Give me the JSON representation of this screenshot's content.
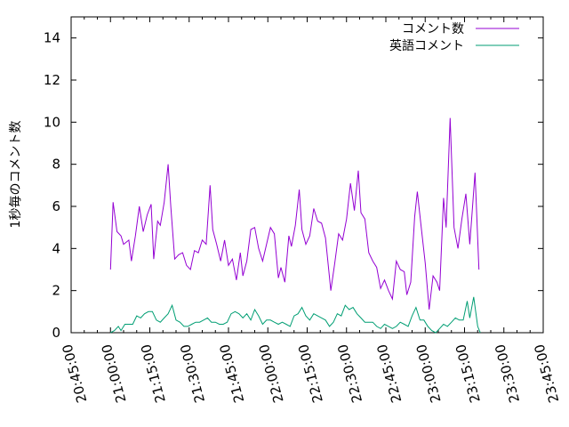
{
  "chart_data": {
    "type": "line",
    "title": "",
    "xlabel": "",
    "ylabel": "1秒毎のコメント数",
    "x_tick_labels": [
      "20:45:00",
      "21:00:00",
      "21:15:00",
      "21:30:00",
      "21:45:00",
      "22:00:00",
      "22:15:00",
      "22:30:00",
      "22:45:00",
      "23:00:00",
      "23:15:00",
      "23:30:00",
      "23:45:00"
    ],
    "x_range": [
      "20:45:00",
      "23:45:00"
    ],
    "y_ticks": [
      0,
      2,
      4,
      6,
      8,
      10,
      12,
      14
    ],
    "ylim": [
      0,
      15
    ],
    "legend_position": "top-right",
    "grid": false,
    "series": [
      {
        "name": "コメント数",
        "color": "#9400d3",
        "points": [
          [
            "21:00:00",
            3.0
          ],
          [
            "21:01:00",
            6.2
          ],
          [
            "21:02:30",
            4.8
          ],
          [
            "21:04:00",
            4.6
          ],
          [
            "21:05:00",
            4.2
          ],
          [
            "21:07:00",
            4.4
          ],
          [
            "21:08:00",
            3.4
          ],
          [
            "21:09:30",
            4.6
          ],
          [
            "21:11:00",
            6.0
          ],
          [
            "21:12:30",
            4.8
          ],
          [
            "21:14:00",
            5.6
          ],
          [
            "21:15:30",
            6.1
          ],
          [
            "21:16:30",
            3.5
          ],
          [
            "21:18:00",
            5.3
          ],
          [
            "21:19:00",
            5.1
          ],
          [
            "21:20:30",
            6.2
          ],
          [
            "21:22:00",
            8.0
          ],
          [
            "21:23:00",
            6.0
          ],
          [
            "21:24:30",
            3.5
          ],
          [
            "21:26:00",
            3.7
          ],
          [
            "21:27:30",
            3.8
          ],
          [
            "21:29:00",
            3.2
          ],
          [
            "21:30:30",
            3.0
          ],
          [
            "21:32:00",
            3.9
          ],
          [
            "21:33:30",
            3.8
          ],
          [
            "21:35:00",
            4.4
          ],
          [
            "21:36:30",
            4.2
          ],
          [
            "21:38:00",
            7.0
          ],
          [
            "21:39:00",
            4.9
          ],
          [
            "21:40:30",
            4.2
          ],
          [
            "21:42:00",
            3.4
          ],
          [
            "21:43:30",
            4.4
          ],
          [
            "21:45:00",
            3.2
          ],
          [
            "21:46:30",
            3.5
          ],
          [
            "21:48:00",
            2.5
          ],
          [
            "21:49:30",
            3.8
          ],
          [
            "21:50:30",
            2.7
          ],
          [
            "21:52:00",
            3.4
          ],
          [
            "21:53:30",
            4.9
          ],
          [
            "21:55:00",
            5.0
          ],
          [
            "21:56:30",
            4.0
          ],
          [
            "21:58:00",
            3.4
          ],
          [
            "21:59:30",
            4.2
          ],
          [
            "22:01:00",
            5.0
          ],
          [
            "22:02:30",
            4.7
          ],
          [
            "22:04:00",
            2.6
          ],
          [
            "22:05:00",
            3.1
          ],
          [
            "22:06:30",
            2.4
          ],
          [
            "22:08:00",
            4.6
          ],
          [
            "22:09:00",
            4.1
          ],
          [
            "22:10:30",
            5.1
          ],
          [
            "22:12:00",
            6.8
          ],
          [
            "22:13:00",
            4.9
          ],
          [
            "22:14:30",
            4.2
          ],
          [
            "22:16:00",
            4.6
          ],
          [
            "22:17:30",
            5.9
          ],
          [
            "22:19:00",
            5.3
          ],
          [
            "22:20:30",
            5.2
          ],
          [
            "22:22:00",
            4.5
          ],
          [
            "22:24:00",
            2.0
          ],
          [
            "22:25:30",
            3.3
          ],
          [
            "22:27:00",
            4.7
          ],
          [
            "22:28:30",
            4.4
          ],
          [
            "22:30:00",
            5.4
          ],
          [
            "22:31:30",
            7.1
          ],
          [
            "22:33:00",
            5.8
          ],
          [
            "22:34:30",
            7.7
          ],
          [
            "22:35:30",
            5.7
          ],
          [
            "22:37:00",
            5.4
          ],
          [
            "22:38:30",
            3.8
          ],
          [
            "22:40:00",
            3.4
          ],
          [
            "22:41:30",
            3.1
          ],
          [
            "22:43:00",
            2.1
          ],
          [
            "22:44:30",
            2.5
          ],
          [
            "22:46:00",
            2.0
          ],
          [
            "22:47:30",
            1.6
          ],
          [
            "22:49:00",
            3.4
          ],
          [
            "22:50:30",
            3.0
          ],
          [
            "22:52:00",
            2.9
          ],
          [
            "22:53:00",
            1.8
          ],
          [
            "22:54:30",
            2.4
          ],
          [
            "22:56:00",
            5.5
          ],
          [
            "22:57:00",
            6.7
          ],
          [
            "22:58:30",
            5.0
          ],
          [
            "23:00:00",
            3.3
          ],
          [
            "23:01:30",
            1.1
          ],
          [
            "23:03:00",
            2.7
          ],
          [
            "23:04:30",
            2.4
          ],
          [
            "23:05:30",
            2.0
          ],
          [
            "23:07:00",
            6.4
          ],
          [
            "23:08:00",
            5.0
          ],
          [
            "23:09:30",
            10.2
          ],
          [
            "23:11:00",
            5.0
          ],
          [
            "23:12:30",
            4.0
          ],
          [
            "23:14:00",
            5.4
          ],
          [
            "23:15:30",
            6.6
          ],
          [
            "23:17:00",
            4.2
          ],
          [
            "23:19:00",
            7.6
          ],
          [
            "23:20:30",
            3.0
          ]
        ]
      },
      {
        "name": "英語コメント",
        "color": "#009e73",
        "points": [
          [
            "21:00:00",
            0.0
          ],
          [
            "21:01:30",
            0.1
          ],
          [
            "21:03:00",
            0.3
          ],
          [
            "21:04:00",
            0.1
          ],
          [
            "21:05:30",
            0.4
          ],
          [
            "21:07:00",
            0.4
          ],
          [
            "21:08:30",
            0.4
          ],
          [
            "21:10:00",
            0.8
          ],
          [
            "21:11:30",
            0.7
          ],
          [
            "21:13:00",
            0.9
          ],
          [
            "21:14:30",
            1.0
          ],
          [
            "21:16:00",
            1.0
          ],
          [
            "21:17:30",
            0.6
          ],
          [
            "21:19:00",
            0.5
          ],
          [
            "21:20:30",
            0.7
          ],
          [
            "21:22:00",
            0.9
          ],
          [
            "21:23:30",
            1.3
          ],
          [
            "21:25:00",
            0.6
          ],
          [
            "21:26:30",
            0.5
          ],
          [
            "21:28:00",
            0.3
          ],
          [
            "21:29:30",
            0.3
          ],
          [
            "21:31:00",
            0.4
          ],
          [
            "21:32:30",
            0.5
          ],
          [
            "21:34:00",
            0.5
          ],
          [
            "21:35:30",
            0.6
          ],
          [
            "21:37:00",
            0.7
          ],
          [
            "21:38:30",
            0.5
          ],
          [
            "21:40:00",
            0.5
          ],
          [
            "21:41:30",
            0.4
          ],
          [
            "21:43:00",
            0.4
          ],
          [
            "21:44:30",
            0.5
          ],
          [
            "21:46:00",
            0.9
          ],
          [
            "21:47:30",
            1.0
          ],
          [
            "21:49:00",
            0.9
          ],
          [
            "21:50:30",
            0.7
          ],
          [
            "21:52:00",
            0.9
          ],
          [
            "21:53:30",
            0.6
          ],
          [
            "21:55:00",
            1.1
          ],
          [
            "21:56:30",
            0.8
          ],
          [
            "21:58:00",
            0.4
          ],
          [
            "21:59:30",
            0.6
          ],
          [
            "22:01:00",
            0.6
          ],
          [
            "22:02:30",
            0.5
          ],
          [
            "22:04:00",
            0.4
          ],
          [
            "22:05:30",
            0.5
          ],
          [
            "22:07:00",
            0.4
          ],
          [
            "22:08:30",
            0.3
          ],
          [
            "22:10:00",
            0.8
          ],
          [
            "22:11:30",
            0.9
          ],
          [
            "22:13:00",
            1.2
          ],
          [
            "22:14:30",
            0.8
          ],
          [
            "22:16:00",
            0.6
          ],
          [
            "22:17:30",
            0.9
          ],
          [
            "22:19:00",
            0.8
          ],
          [
            "22:20:30",
            0.7
          ],
          [
            "22:22:00",
            0.6
          ],
          [
            "22:23:30",
            0.3
          ],
          [
            "22:25:00",
            0.5
          ],
          [
            "22:26:30",
            0.9
          ],
          [
            "22:28:00",
            0.8
          ],
          [
            "22:29:30",
            1.3
          ],
          [
            "22:31:00",
            1.1
          ],
          [
            "22:32:30",
            1.2
          ],
          [
            "22:34:00",
            0.9
          ],
          [
            "22:35:30",
            0.7
          ],
          [
            "22:37:00",
            0.5
          ],
          [
            "22:38:30",
            0.5
          ],
          [
            "22:40:00",
            0.5
          ],
          [
            "22:41:30",
            0.3
          ],
          [
            "22:43:00",
            0.2
          ],
          [
            "22:44:30",
            0.4
          ],
          [
            "22:46:00",
            0.3
          ],
          [
            "22:47:30",
            0.2
          ],
          [
            "22:49:00",
            0.3
          ],
          [
            "22:50:30",
            0.5
          ],
          [
            "22:52:00",
            0.4
          ],
          [
            "22:53:30",
            0.3
          ],
          [
            "22:55:00",
            0.8
          ],
          [
            "22:56:30",
            1.2
          ],
          [
            "22:58:00",
            0.6
          ],
          [
            "22:59:30",
            0.6
          ],
          [
            "23:01:00",
            0.3
          ],
          [
            "23:02:30",
            0.1
          ],
          [
            "23:04:00",
            0.0
          ],
          [
            "23:05:30",
            0.2
          ],
          [
            "23:07:00",
            0.4
          ],
          [
            "23:08:30",
            0.3
          ],
          [
            "23:10:00",
            0.5
          ],
          [
            "23:11:30",
            0.7
          ],
          [
            "23:13:00",
            0.6
          ],
          [
            "23:14:30",
            0.6
          ],
          [
            "23:16:00",
            1.5
          ],
          [
            "23:17:00",
            0.7
          ],
          [
            "23:18:30",
            1.7
          ],
          [
            "23:20:00",
            0.3
          ],
          [
            "23:21:00",
            0.0
          ]
        ]
      }
    ]
  }
}
